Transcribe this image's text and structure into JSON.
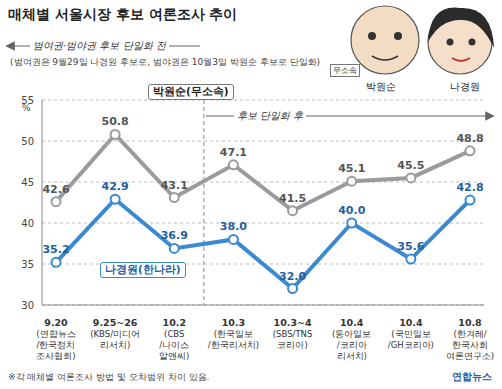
{
  "chart_data": {
    "type": "line",
    "title": "매체별 서울시장 후보 여론조사 추이",
    "annotations": {
      "before": "범여권·범야권 후보 단일화 전",
      "note": "(범여권은 9월29일 나경원 후보로, 범야권은 10월3일 박원순 후보로 단일화)",
      "after": "후보 단일화 후",
      "footnote": "※각 매체별 여론조사 방법 및 오차범위 차이 있음.",
      "source": "연합뉴스"
    },
    "portraits": [
      {
        "name": "박원순",
        "badge": "무소속"
      },
      {
        "name": "나경원"
      }
    ],
    "y_label": "%",
    "categories": [
      "9.20\n(연합뉴스\n/한국정치\n조사협회)",
      "9.25~26\n(KBS/미디어\n리서치)",
      "10.2\n(CBS\n/나이스\n알앤씨)",
      "10.3\n(한국일보\n/한국리서치)",
      "10.3~4\n(SBS/TNS\n코리아)",
      "10.4\n(동아일보\n/코리아\n리서치)",
      "10.4\n(국민일보\n/GH코리아)",
      "10.8\n(한겨레/\n한국사회\n여론연구소)"
    ],
    "series": [
      {
        "name": "박원순(무소속)",
        "color": "#9b9b9b",
        "values": [
          42.6,
          50.8,
          43.1,
          47.1,
          41.5,
          45.1,
          45.5,
          48.8
        ]
      },
      {
        "name": "나경원(한나라)",
        "color": "#3b8ad1",
        "values": [
          35.2,
          42.9,
          36.9,
          38.0,
          32.0,
          40.0,
          35.6,
          42.8
        ],
        "value_labels": [
          "35.2",
          "42.9",
          "36.9",
          "38.0",
          "32.0",
          "40.0",
          "35.6",
          "42.8"
        ]
      }
    ],
    "ylim": [
      30,
      55
    ],
    "yticks": [
      30,
      35,
      40,
      45,
      50,
      55
    ],
    "grid": true,
    "data_labels": true,
    "marker": "circle"
  }
}
